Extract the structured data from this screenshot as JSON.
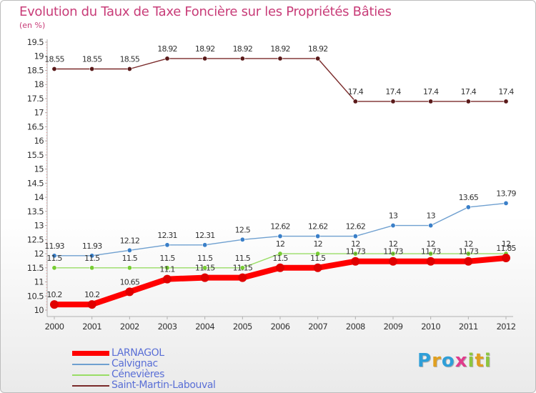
{
  "colors": {
    "title": "#c83c78",
    "axis_text": "#333333",
    "legend_text": "#5a6fd6"
  },
  "logo": {
    "text": "Proxiti",
    "letters": [
      {
        "ch": "P",
        "color": "#2f9fd8"
      },
      {
        "ch": "r",
        "color": "#e0a020"
      },
      {
        "ch": "o",
        "color": "#2f9fd8"
      },
      {
        "ch": "x",
        "color": "#e03c8c"
      },
      {
        "ch": "i",
        "color": "#8cc63f"
      },
      {
        "ch": "t",
        "color": "#e0a020"
      },
      {
        "ch": "i",
        "color": "#8cc63f"
      }
    ]
  },
  "chart_data": {
    "type": "line",
    "title": "Evolution du Taux de Taxe Foncière sur les Propriétés Bâties",
    "ylabel": "(en %)",
    "xlabel": "",
    "categories": [
      "2000",
      "2001",
      "2002",
      "2003",
      "2004",
      "2005",
      "2006",
      "2007",
      "2008",
      "2009",
      "2010",
      "2011",
      "2012"
    ],
    "ylim": [
      10,
      19.5
    ],
    "yticks": [
      "10",
      "10.5",
      "11",
      "11.5",
      "12",
      "12.5",
      "13",
      "13.5",
      "14",
      "14.5",
      "15",
      "15.5",
      "16",
      "16.5",
      "17",
      "17.5",
      "18",
      "18.5",
      "19",
      "19.5"
    ],
    "grid": false,
    "legend_position": "bottom-left",
    "series": [
      {
        "name": "LARNAGOL",
        "color": "#ff0000",
        "marker": "#e00000",
        "width": "thick",
        "values": [
          10.2,
          10.2,
          10.65,
          11.1,
          11.15,
          11.15,
          11.5,
          11.5,
          11.73,
          11.73,
          11.73,
          11.73,
          11.85
        ],
        "labels": [
          "10.2",
          "10.2",
          "10.65",
          "11.1",
          "11.15",
          "11.15",
          "11.5",
          "11.5",
          "11.73",
          "11.73",
          "11.73",
          "11.73",
          "11.85"
        ]
      },
      {
        "name": "Calvignac",
        "color": "#6fa0d0",
        "marker": "#3a7fc8",
        "width": "thin",
        "values": [
          11.93,
          11.93,
          12.12,
          12.31,
          12.31,
          12.5,
          12.62,
          12.62,
          12.62,
          13,
          13,
          13.65,
          13.79
        ],
        "labels": [
          "11.93",
          "11.93",
          "12.12",
          "12.31",
          "12.31",
          "12.5",
          "12.62",
          "12.62",
          "12.62",
          "13",
          "13",
          "13.65",
          "13.79"
        ]
      },
      {
        "name": "Cénevières",
        "color": "#99dd66",
        "marker": "#77cc33",
        "width": "thin",
        "values": [
          11.5,
          11.5,
          11.5,
          11.5,
          11.5,
          11.5,
          12,
          12,
          12,
          12,
          12,
          12,
          12
        ],
        "labels": [
          "11.5",
          "11.5",
          "11.5",
          "11.5",
          "11.5",
          "11.5",
          "12",
          "12",
          "12",
          "12",
          "12",
          "12",
          "12"
        ]
      },
      {
        "name": "Saint-Martin-Labouval",
        "color": "#7a2a2a",
        "marker": "#5a1a1a",
        "width": "thin",
        "values": [
          18.55,
          18.55,
          18.55,
          18.92,
          18.92,
          18.92,
          18.92,
          18.92,
          17.4,
          17.4,
          17.4,
          17.4,
          17.4
        ],
        "labels": [
          "18.55",
          "18.55",
          "18.55",
          "18.92",
          "18.92",
          "18.92",
          "18.92",
          "18.92",
          "17.4",
          "17.4",
          "17.4",
          "17.4",
          "17.4"
        ]
      }
    ]
  }
}
